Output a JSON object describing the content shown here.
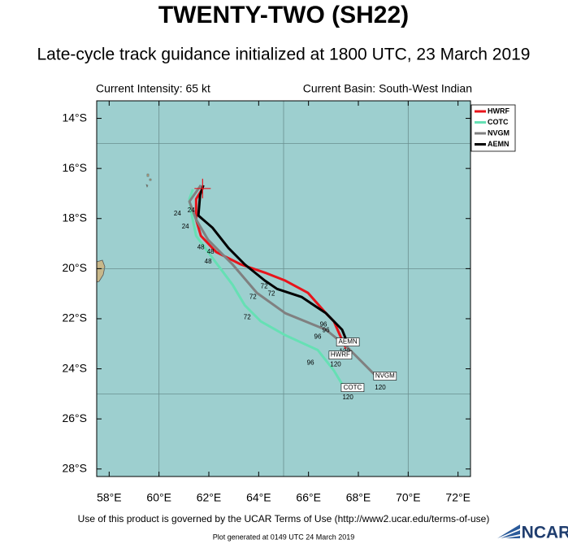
{
  "chart_data": {
    "type": "line",
    "title": "TWENTY-TWO (SH22)",
    "subtitle": "Late-cycle track guidance initialized at 1800 UTC, 23 March 2019",
    "intensity": "Current Intensity: 65 kt",
    "basin": "Current Basin: South-West Indian",
    "footer": "Use of this product is governed by the UCAR Terms of Use (http://www2.ucar.edu/terms-of-use)",
    "generated": "Plot generated at 0149 UTC  24 March 2019",
    "logo": "NCAR",
    "xlim": [
      57.5,
      72.5
    ],
    "ylim": [
      -28.3,
      -13.3
    ],
    "xticks": [
      {
        "value": 58,
        "label": "58°E"
      },
      {
        "value": 60,
        "label": "60°E"
      },
      {
        "value": 62,
        "label": "62°E"
      },
      {
        "value": 64,
        "label": "64°E"
      },
      {
        "value": 66,
        "label": "66°E"
      },
      {
        "value": 68,
        "label": "68°E"
      },
      {
        "value": 70,
        "label": "70°E"
      },
      {
        "value": 72,
        "label": "72°E"
      }
    ],
    "yticks": [
      {
        "value": -14,
        "label": "14°S"
      },
      {
        "value": -16,
        "label": "16°S"
      },
      {
        "value": -18,
        "label": "18°S"
      },
      {
        "value": -20,
        "label": "20°S"
      },
      {
        "value": -22,
        "label": "22°S"
      },
      {
        "value": -24,
        "label": "24°S"
      },
      {
        "value": -26,
        "label": "26°S"
      },
      {
        "value": -28,
        "label": "28°S"
      }
    ],
    "grid_x": [
      60,
      65,
      70
    ],
    "grid_y": [
      -15,
      -20,
      -25
    ],
    "current_position": {
      "x": 61.75,
      "y": -16.8,
      "color": "#e8141b"
    },
    "series": [
      {
        "name": "HWRF",
        "color": "#e8141b",
        "x": [
          61.75,
          61.49,
          61.49,
          61.68,
          62.3,
          63.28,
          64.25,
          65.07,
          65.98,
          66.7,
          67.02,
          67.28,
          67.51
        ],
        "values": [
          -16.8,
          -17.22,
          -18.04,
          -18.69,
          -19.34,
          -19.83,
          -20.16,
          -20.48,
          -20.97,
          -21.78,
          -22.11,
          -22.7,
          -23.19
        ]
      },
      {
        "name": "COTC",
        "color": "#66e0b4",
        "x": [
          61.36,
          61.22,
          61.32,
          61.49,
          61.97,
          62.46,
          62.95,
          63.44,
          64.09,
          65.07,
          66.37,
          67.02,
          67.51
        ],
        "values": [
          -16.83,
          -17.22,
          -17.88,
          -18.69,
          -19.34,
          -19.99,
          -20.64,
          -21.46,
          -22.11,
          -22.66,
          -23.25,
          -24.07,
          -24.88
        ]
      },
      {
        "name": "NVGM",
        "color": "#808080",
        "x": [
          61.68,
          61.22,
          61.49,
          61.97,
          62.95,
          63.93,
          65.07,
          66.7,
          67.51,
          68.65
        ],
        "values": [
          -16.67,
          -17.32,
          -18.04,
          -18.85,
          -19.83,
          -20.97,
          -21.78,
          -22.44,
          -23.09,
          -24.23
        ]
      },
      {
        "name": "AEMN",
        "color": "#000000",
        "x": [
          61.78,
          61.65,
          61.58,
          62.14,
          62.79,
          63.44,
          64.25,
          64.74,
          65.72,
          66.7,
          67.35,
          67.61
        ],
        "values": [
          -16.67,
          -17.06,
          -17.88,
          -18.36,
          -19.18,
          -19.83,
          -20.48,
          -20.81,
          -21.13,
          -21.78,
          -22.44,
          -23.09
        ]
      }
    ],
    "hour_labels": [
      {
        "text": "24",
        "x": 61.29,
        "y": -17.68
      },
      {
        "text": "24",
        "x": 60.74,
        "y": -17.81
      },
      {
        "text": "24",
        "x": 61.06,
        "y": -18.33
      },
      {
        "text": "48",
        "x": 61.68,
        "y": -19.15
      },
      {
        "text": "48",
        "x": 62.07,
        "y": -19.34
      },
      {
        "text": "48",
        "x": 61.97,
        "y": -19.73
      },
      {
        "text": "72",
        "x": 64.22,
        "y": -20.71
      },
      {
        "text": "72",
        "x": 64.51,
        "y": -21.0
      },
      {
        "text": "72",
        "x": 63.77,
        "y": -21.13
      },
      {
        "text": "72",
        "x": 63.54,
        "y": -21.95
      },
      {
        "text": "96",
        "x": 66.6,
        "y": -22.24
      },
      {
        "text": "96",
        "x": 66.7,
        "y": -22.47
      },
      {
        "text": "96",
        "x": 66.37,
        "y": -22.73
      },
      {
        "text": "96",
        "x": 66.08,
        "y": -23.77
      },
      {
        "text": "120",
        "x": 67.45,
        "y": -23.32
      },
      {
        "text": "120",
        "x": 67.09,
        "y": -23.84
      },
      {
        "text": "120",
        "x": 68.88,
        "y": -24.75
      },
      {
        "text": "120",
        "x": 67.58,
        "y": -25.14
      }
    ],
    "end_labels": [
      {
        "text": "AEMN",
        "x": 67.58,
        "y": -22.93
      },
      {
        "text": "HWRF",
        "x": 67.28,
        "y": -23.45
      },
      {
        "text": "NVGM",
        "x": 69.07,
        "y": -24.29
      },
      {
        "text": "COTC",
        "x": 67.77,
        "y": -24.75
      }
    ]
  }
}
